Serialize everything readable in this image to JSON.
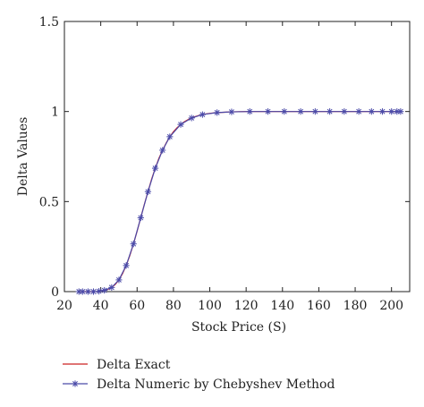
{
  "chart_data": {
    "type": "line",
    "title": "",
    "xlabel": "Stock Price (S)",
    "ylabel": "Delta Values",
    "xlim": [
      20,
      210
    ],
    "ylim": [
      0,
      1.5
    ],
    "xticks": [
      20,
      40,
      60,
      80,
      100,
      120,
      140,
      160,
      180,
      200
    ],
    "yticks": [
      0,
      0.5,
      1,
      1.5
    ],
    "ytick_labels": [
      "0",
      "0.5",
      "1",
      "1.5"
    ],
    "grid": false,
    "legend_position": "bottom",
    "series": [
      {
        "name": "Delta Exact",
        "color": "#cc2222",
        "marker": "none",
        "x": [
          28,
          30,
          32,
          34,
          36,
          38,
          40,
          42,
          44,
          46,
          48,
          50,
          52,
          54,
          56,
          58,
          60,
          62,
          64,
          66,
          68,
          70,
          72,
          74,
          76,
          78,
          80,
          82,
          84,
          86,
          88,
          90,
          92,
          94,
          96,
          98,
          100,
          104,
          108,
          112,
          116,
          120,
          130,
          140,
          150,
          160,
          170,
          180,
          190,
          200,
          204
        ],
        "y": [
          0.0,
          0.0,
          0.0,
          0.0,
          0.0,
          0.001,
          0.003,
          0.007,
          0.013,
          0.023,
          0.04,
          0.065,
          0.1,
          0.145,
          0.2,
          0.265,
          0.335,
          0.41,
          0.485,
          0.555,
          0.625,
          0.685,
          0.74,
          0.785,
          0.825,
          0.86,
          0.888,
          0.91,
          0.928,
          0.943,
          0.955,
          0.964,
          0.972,
          0.978,
          0.983,
          0.987,
          0.99,
          0.994,
          0.996,
          0.998,
          0.999,
          1.0,
          1.0,
          1.0,
          1.0,
          1.0,
          1.0,
          1.0,
          1.0,
          1.0,
          1.0
        ]
      },
      {
        "name": "Delta Numeric by Chebyshev Method",
        "color": "#4a4aa8",
        "marker": "asterisk",
        "x": [
          28,
          30,
          33,
          36,
          39,
          42,
          46,
          50,
          54,
          58,
          62,
          66,
          70,
          74,
          78,
          84,
          90,
          96,
          104,
          112,
          122,
          132,
          141,
          150,
          158,
          166,
          174,
          182,
          189,
          195,
          200,
          203,
          205
        ],
        "y": [
          0.0,
          0.0,
          0.0,
          0.0,
          0.002,
          0.007,
          0.023,
          0.065,
          0.145,
          0.265,
          0.41,
          0.555,
          0.685,
          0.785,
          0.86,
          0.928,
          0.964,
          0.983,
          0.994,
          0.998,
          1.0,
          1.0,
          1.0,
          1.0,
          1.0,
          1.0,
          1.0,
          1.0,
          1.0,
          1.0,
          1.0,
          1.0,
          1.0
        ]
      }
    ]
  }
}
